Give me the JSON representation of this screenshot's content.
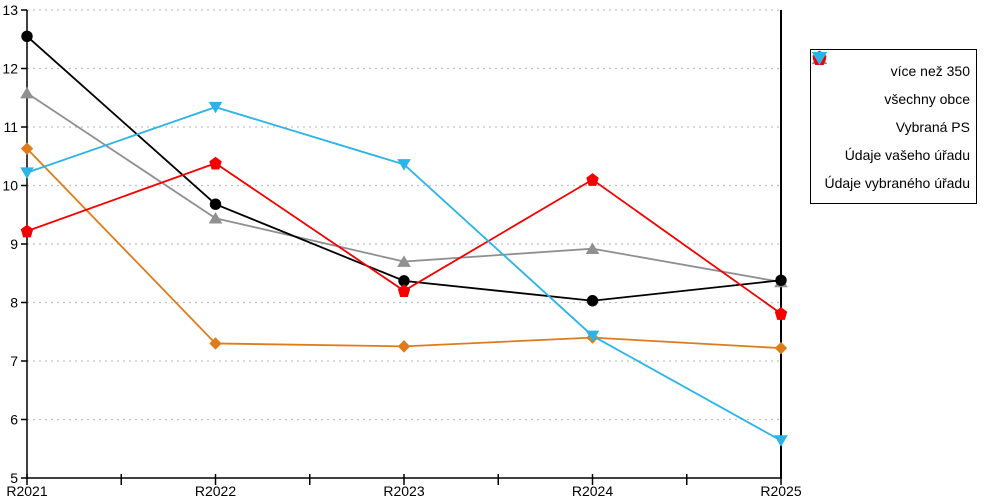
{
  "chart_data": {
    "type": "line",
    "title": "",
    "xlabel": "",
    "ylabel": "",
    "categories": [
      "R2021",
      "R2022",
      "R2023",
      "R2024",
      "R2025"
    ],
    "series": [
      {
        "name": "více než 350",
        "marker": "diamond",
        "color": "#DE7C1B",
        "values": [
          10.63,
          7.3,
          7.25,
          7.4,
          7.22
        ]
      },
      {
        "name": "všechny obce",
        "marker": "circle",
        "color": "#000000",
        "values": [
          12.55,
          9.68,
          8.37,
          8.03,
          8.38
        ]
      },
      {
        "name": "Vybraná PS",
        "marker": "triangle-up",
        "color": "#909090",
        "values": [
          11.58,
          9.44,
          8.7,
          8.92,
          8.35
        ]
      },
      {
        "name": "Údaje vašeho úřadu",
        "marker": "pentagon",
        "color": "#F40000",
        "values": [
          9.22,
          10.38,
          8.2,
          10.1,
          7.81
        ]
      },
      {
        "name": "Údaje vybraného úřadu",
        "marker": "triangle-down",
        "color": "#2CB3E8",
        "values": [
          10.22,
          11.34,
          10.36,
          7.43,
          5.64
        ]
      }
    ],
    "ylim": [
      5,
      13
    ],
    "yticks": [
      5,
      6,
      7,
      8,
      9,
      10,
      11,
      12,
      13
    ],
    "grid": true,
    "gridline_color": "#C0C0C0",
    "axis_color": "#000000",
    "right_boundary_line": true,
    "legend_position": "right"
  }
}
